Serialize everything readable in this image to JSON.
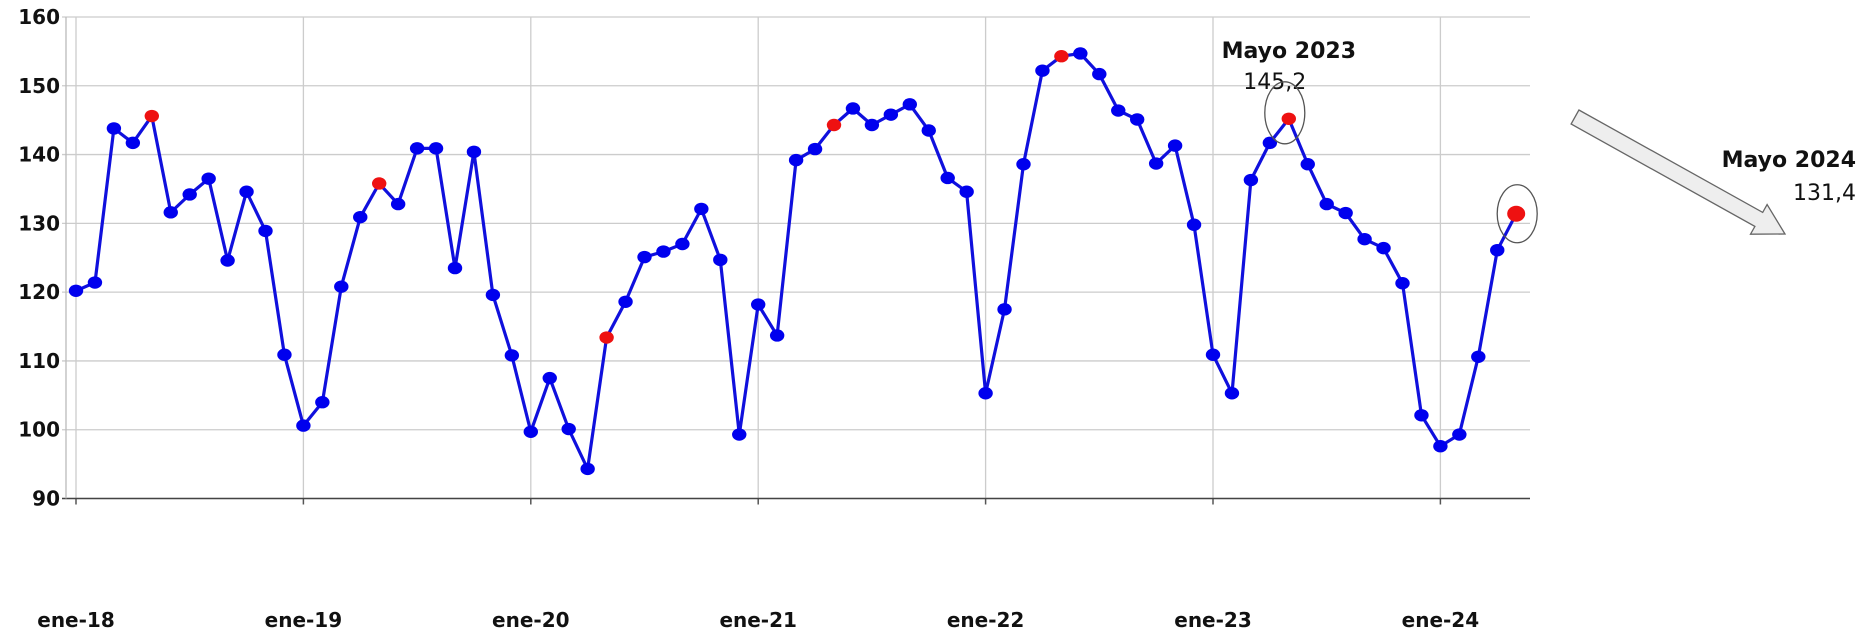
{
  "chart_data": {
    "type": "line",
    "title": "",
    "xlabel": "",
    "ylabel": "",
    "ylim": [
      90,
      160
    ],
    "y_ticks": [
      "90",
      "100",
      "110",
      "120",
      "130",
      "140",
      "150",
      "160"
    ],
    "x_tick_labels": [
      "ene-18",
      "ene-19",
      "ene-20",
      "ene-21",
      "ene-22",
      "ene-23",
      "ene-24"
    ],
    "grid": true,
    "colors": {
      "line": "#1010dd",
      "point": "#0000ee",
      "highlight": "#ee1111",
      "grid": "#cccccc"
    },
    "series": [
      {
        "values": [
          120.2,
          121.4,
          143.8,
          141.7,
          145.6,
          131.6,
          134.2,
          136.5,
          124.6,
          134.6,
          128.9,
          110.9,
          100.6,
          104.0,
          120.8,
          130.9,
          135.8,
          132.8,
          140.9,
          140.9,
          123.5,
          140.4,
          119.6,
          110.8,
          99.7,
          107.5,
          100.1,
          94.3,
          113.4,
          118.6,
          125.1,
          125.9,
          127.0,
          132.1,
          124.7,
          99.3,
          118.2,
          113.7,
          139.2,
          140.8,
          144.3,
          146.7,
          144.3,
          145.8,
          147.3,
          143.5,
          136.6,
          134.6,
          105.3,
          117.5,
          138.6,
          152.2,
          154.3,
          154.7,
          151.7,
          146.4,
          145.1,
          138.7,
          141.3,
          129.8,
          110.9,
          105.3,
          136.3,
          141.7,
          145.2,
          138.6,
          132.8,
          131.5,
          127.7,
          126.4,
          121.3,
          102.1,
          97.6,
          99.3,
          110.6,
          126.1,
          131.4
        ],
        "highlight_indices": [
          4,
          16,
          28,
          40,
          52,
          64,
          76
        ]
      }
    ],
    "annotations": [
      {
        "title": "Mayo 2023",
        "value": "145,2",
        "index": 64
      },
      {
        "title": "Mayo 2024",
        "value": "131,4",
        "index": 76
      }
    ]
  }
}
